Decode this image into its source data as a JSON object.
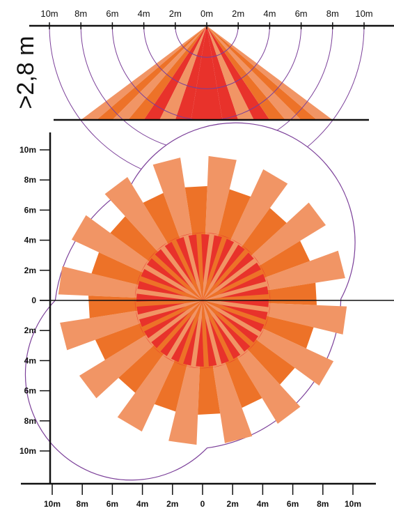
{
  "colors": {
    "red": "#e8322b",
    "orange": "#ed7228",
    "salmon": "#f19565",
    "outline": "#7b3f99",
    "axis": "#111111"
  },
  "side_view": {
    "height_label": ">2,8 m",
    "ticks": [
      "10m",
      "8m",
      "6m",
      "4m",
      "2m",
      "0m",
      "2m",
      "4m",
      "6m",
      "8m",
      "10m"
    ],
    "zones": [
      {
        "from": -8,
        "to": -7,
        "tier": "salmon"
      },
      {
        "from": -7,
        "to": -6,
        "tier": "orange"
      },
      {
        "from": -6,
        "to": -5,
        "tier": "salmon"
      },
      {
        "from": -5,
        "to": -4,
        "tier": "orange"
      },
      {
        "from": -4,
        "to": -3,
        "tier": "red"
      },
      {
        "from": -3,
        "to": -2,
        "tier": "salmon"
      },
      {
        "from": -2,
        "to": -1,
        "tier": "red"
      },
      {
        "from": -1,
        "to": 1,
        "tier": "red"
      },
      {
        "from": 1,
        "to": 2,
        "tier": "red"
      },
      {
        "from": 2,
        "to": 3,
        "tier": "salmon"
      },
      {
        "from": 3,
        "to": 4,
        "tier": "red"
      },
      {
        "from": 4,
        "to": 5,
        "tier": "orange"
      },
      {
        "from": 5,
        "to": 6,
        "tier": "salmon"
      },
      {
        "from": 6,
        "to": 7,
        "tier": "orange"
      },
      {
        "from": 7,
        "to": 8,
        "tier": "salmon"
      }
    ]
  },
  "top_view": {
    "y_ticks": [
      "10m",
      "8m",
      "6m",
      "4m",
      "2m",
      "0",
      "2m",
      "4m",
      "6m",
      "8m",
      "10m"
    ],
    "x_ticks": [
      "10m",
      "8m",
      "6m",
      "4m",
      "2m",
      "0",
      "2m",
      "4m",
      "6m",
      "8m",
      "10m"
    ],
    "center_disc_radius_m": 4.5,
    "petal_count": 16,
    "petal_width_deg": 11.25,
    "long_petal_radius_m": 9.6,
    "short_petal_radius_m": 7.6
  }
}
